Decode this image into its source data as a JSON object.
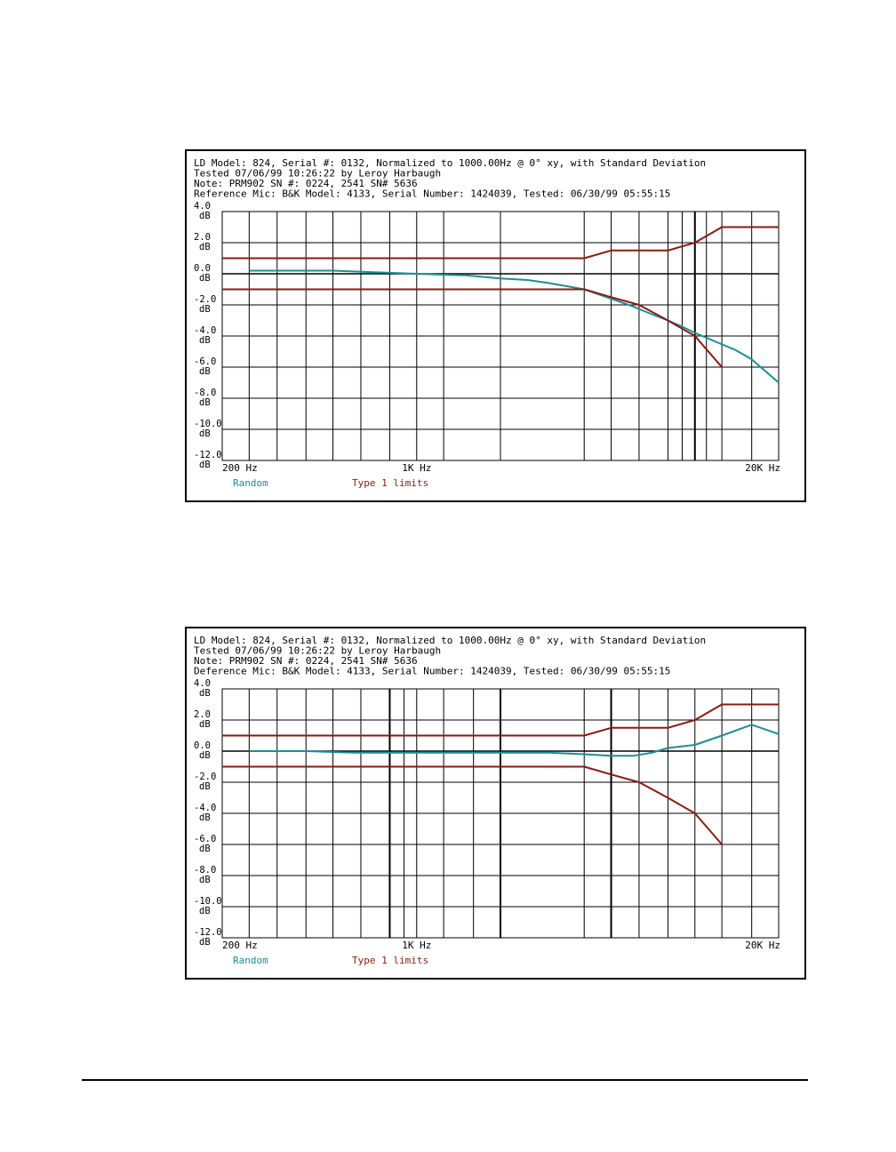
{
  "colors": {
    "random": "#1a8f96",
    "limits": "#8b1a10",
    "grid": "#000000"
  },
  "chart_data": [
    {
      "type": "line",
      "header": [
        "LD Model: 824, Serial #: 0132, Normalized to 1000.00Hz @ 0° xy, with Standard Deviation",
        "Tested 07/06/99 10:26:22 by Leroy Harbaugh",
        "Note: PRM902 SN #: 0224, 2541 SN# 5636",
        "Reference Mic: B&K Model: 4133, Serial Number: 1424039, Tested: 06/30/99 05:55:15"
      ],
      "x_scale": "log",
      "xlim": [
        200,
        20000
      ],
      "ylim": [
        -12,
        4
      ],
      "y_ticks": [
        {
          "value": 4,
          "label": "4.0",
          "unit": "dB"
        },
        {
          "value": 2,
          "label": "2.0",
          "unit": "dB"
        },
        {
          "value": 0,
          "label": "0.0",
          "unit": "dB"
        },
        {
          "value": -2,
          "label": "-2.0",
          "unit": "dB"
        },
        {
          "value": -4,
          "label": "-4.0",
          "unit": "dB"
        },
        {
          "value": -6,
          "label": "-6.0",
          "unit": "dB"
        },
        {
          "value": -8,
          "label": "-8.0",
          "unit": "dB"
        },
        {
          "value": -10,
          "label": "-10.0",
          "unit": "dB"
        },
        {
          "value": -12,
          "label": "-12.0",
          "unit": "dB"
        }
      ],
      "x_ticks": [
        {
          "value": 200,
          "label": "200 Hz"
        },
        {
          "value": 1000,
          "label": "1K Hz"
        },
        {
          "value": 20000,
          "label": "20K Hz"
        }
      ],
      "x_gridlines": [
        250,
        315,
        400,
        500,
        630,
        800,
        1000,
        1250,
        2000,
        4000,
        5000,
        6300,
        8000,
        9000,
        10000,
        11000,
        12500,
        16000,
        20000
      ],
      "x_bold_gridlines": [
        10000
      ],
      "legend": [
        "Random",
        "Type 1 limits"
      ],
      "series": [
        {
          "name": "Random",
          "role": "random",
          "x": [
            250,
            300,
            400,
            500,
            700,
            1000,
            1500,
            2000,
            2500,
            3000,
            4000,
            5000,
            6000,
            7000,
            8000,
            9000,
            10000,
            12000,
            14000,
            16000,
            20000
          ],
          "y": [
            0.2,
            0.2,
            0.2,
            0.2,
            0.1,
            0.0,
            -0.1,
            -0.3,
            -0.4,
            -0.6,
            -1.0,
            -1.6,
            -2.1,
            -2.6,
            -3.0,
            -3.4,
            -3.8,
            -4.4,
            -4.9,
            -5.5,
            -7.0
          ]
        },
        {
          "name": "Type 1 limits",
          "role": "limit",
          "x": [
            200,
            4000,
            5000,
            8000,
            10000,
            12500,
            20000
          ],
          "y": [
            1.0,
            1.0,
            1.5,
            1.5,
            2.0,
            3.0,
            3.0
          ]
        },
        {
          "role": "limit",
          "x": [
            200,
            4000,
            5000,
            6300,
            8000,
            10000,
            12500
          ],
          "y": [
            -1.0,
            -1.0,
            -1.5,
            -2.0,
            -3.0,
            -4.0,
            -6.0
          ]
        }
      ]
    },
    {
      "type": "line",
      "header": [
        "LD Model: 824, Serial #: 0132, Normalized to 1000.00Hz @ 0° xy, with Standard Deviation",
        "Tested 07/06/99 10:26:22 by Leroy Harbaugh",
        "Note: PRM902 SN #: 0224, 2541 SN# 5636",
        "Deference Mic: B&K Model: 4133, Serial Number: 1424039, Tested: 06/30/99 05:55:15"
      ],
      "x_scale": "log",
      "xlim": [
        200,
        20000
      ],
      "ylim": [
        -12,
        4
      ],
      "y_ticks": [
        {
          "value": 4,
          "label": "4.0",
          "unit": "dB"
        },
        {
          "value": 2,
          "label": "2.0",
          "unit": "dB"
        },
        {
          "value": 0,
          "label": "0.0",
          "unit": "dB"
        },
        {
          "value": -2,
          "label": "-2.0",
          "unit": "dB"
        },
        {
          "value": -4,
          "label": "-4.0",
          "unit": "dB"
        },
        {
          "value": -6,
          "label": "-6.0",
          "unit": "dB"
        },
        {
          "value": -8,
          "label": "-8.0",
          "unit": "dB"
        },
        {
          "value": -10,
          "label": "-10.0",
          "unit": "dB"
        },
        {
          "value": -12,
          "label": "-12.0",
          "unit": "dB"
        }
      ],
      "x_ticks": [
        {
          "value": 200,
          "label": "200 Hz"
        },
        {
          "value": 1000,
          "label": "1K Hz"
        },
        {
          "value": 20000,
          "label": "20K Hz"
        }
      ],
      "x_gridlines": [
        250,
        315,
        400,
        500,
        630,
        800,
        900,
        1000,
        1250,
        1600,
        2000,
        4000,
        5000,
        6300,
        8000,
        10000,
        12500,
        16000,
        20000
      ],
      "x_bold_gridlines": [
        800,
        2000,
        5000
      ],
      "legend": [
        "Random",
        "Type 1 limits"
      ],
      "series": [
        {
          "name": "Random",
          "role": "random",
          "x": [
            250,
            400,
            600,
            1000,
            2000,
            3000,
            4000,
            5000,
            6000,
            7000,
            8000,
            10000,
            12500,
            16000,
            20000
          ],
          "y": [
            0.0,
            0.0,
            -0.1,
            -0.1,
            -0.1,
            -0.1,
            -0.2,
            -0.3,
            -0.3,
            -0.1,
            0.2,
            0.4,
            1.0,
            1.7,
            1.1
          ]
        },
        {
          "name": "Type 1 limits",
          "role": "limit",
          "x": [
            200,
            4000,
            5000,
            8000,
            10000,
            12500,
            20000
          ],
          "y": [
            1.0,
            1.0,
            1.5,
            1.5,
            2.0,
            3.0,
            3.0
          ]
        },
        {
          "role": "limit",
          "x": [
            200,
            4000,
            5000,
            6300,
            8000,
            10000,
            12500
          ],
          "y": [
            -1.0,
            -1.0,
            -1.5,
            -2.0,
            -3.0,
            -4.0,
            -6.0
          ]
        }
      ]
    }
  ]
}
